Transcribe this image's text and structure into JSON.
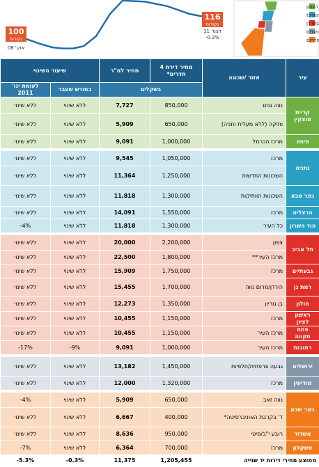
{
  "index_chart": {
    "values": [
      100,
      97,
      93,
      90,
      89,
      89,
      91,
      100,
      120,
      132,
      131,
      127,
      120,
      116
    ],
    "color": "#1e6fa8",
    "start": {
      "value": "100",
      "unit": "נקודות",
      "date": "אוק' 08"
    },
    "end": {
      "value": "116",
      "unit": "נקודות",
      "date": "דצמ' 11",
      "change": "-0.3%"
    },
    "label_color": "#e4572e"
  },
  "legend": [
    {
      "label": "ערי הצפון",
      "color": "#6fb043"
    },
    {
      "label": "ערי המרכז",
      "color": "#29a0c4"
    },
    {
      "label": "גוש דן",
      "color": "#e0302a"
    },
    {
      "label": "ערי אזור ירושלים",
      "color": "#8497a8"
    },
    {
      "label": "ערי הדרום",
      "color": "#f07a1c"
    }
  ],
  "table": {
    "headers": {
      "city": "עיר",
      "area": "אזור /שכונה",
      "price": "מחיר דירת 4 חדרים*",
      "sqm": "מחיר למ\"ר",
      "change": "שיעור השינוי",
      "currency": "בשקלים",
      "month": "בחודש שעבר",
      "jan": "לעומת ינו' 2011"
    },
    "groups": [
      {
        "color": "#6fb043",
        "light": "#d9eac8",
        "cities": [
          {
            "name": "קריית מוצקין",
            "rows": [
              [
                "נווה גנים",
                "850,000",
                "7,727",
                "ללא שינוי",
                "ללא שינוי"
              ],
              [
                "ותיקה (ללא מעלית וחניה)",
                "650,000",
                "5,909",
                "ללא שינוי",
                "ללא שינוי"
              ]
            ]
          },
          {
            "name": "חיפה",
            "rows": [
              [
                "מרכז הכרמל",
                "1,000,000",
                "9,091",
                "ללא שינוי",
                "ללא שינוי"
              ]
            ]
          }
        ]
      },
      {
        "color": "#29a0c4",
        "light": "#cde7f1",
        "cities": [
          {
            "name": "נתניה",
            "rows": [
              [
                "מרכז",
                "1,050,000",
                "9,545",
                "ללא שינוי",
                "ללא שינוי"
              ],
              [
                "השכונות החדשות",
                "1,250,000",
                "11,364",
                "ללא שינוי",
                "ללא שינוי"
              ]
            ]
          },
          {
            "name": "כפר סבא",
            "rows": [
              [
                "השכונות הוותיקות",
                "1,300,000",
                "11,818",
                "ללא שינוי",
                "ללא שינוי"
              ]
            ]
          },
          {
            "name": "הרצליה",
            "rows": [
              [
                "מרכז",
                "1,550,000",
                "14,091",
                "ללא שינוי",
                "ללא שינוי"
              ]
            ]
          },
          {
            "name": "הוד השרון",
            "rows": [
              [
                "כל העיר",
                "1,300,000",
                "11,818",
                "ללא שינוי",
                "-4%"
              ]
            ]
          }
        ]
      },
      {
        "color": "#e0302a",
        "light": "#f7d2c6",
        "cities": [
          {
            "name": "תל אביב",
            "rows": [
              [
                "צפון",
                "2,200,000",
                "20,000",
                "ללא שינוי",
                "ללא שינוי"
              ],
              [
                "מרכז העיר**",
                "1,800,000",
                "22,500",
                "ללא שינוי",
                "ללא שינוי"
              ]
            ]
          },
          {
            "name": "גבעתיים",
            "rows": [
              [
                "מרכז",
                "1,750,000",
                "15,909",
                "ללא שינוי",
                "ללא שינוי"
              ]
            ]
          },
          {
            "name": "רמת גן",
            "rows": [
              [
                "הירדן/מרום נווה",
                "1,700,000",
                "15,455",
                "ללא שינוי",
                "ללא שינוי"
              ]
            ]
          },
          {
            "name": "חולון",
            "rows": [
              [
                "בן גוריון",
                "1,350,000",
                "12,273",
                "ללא שינוי",
                "ללא שינוי"
              ]
            ]
          },
          {
            "name": "ראשון לציון",
            "rows": [
              [
                "מרכז",
                "1,150,000",
                "10,455",
                "ללא שינוי",
                "ללא שינוי"
              ]
            ]
          },
          {
            "name": "פתח תקווה",
            "rows": [
              [
                "מרכז העיר",
                "1,150,000",
                "10,455",
                "ללא שינוי",
                "ללא שינוי"
              ]
            ]
          },
          {
            "name": "רחובות",
            "rows": [
              [
                "מרכז העיר",
                "1,000,000",
                "9,091",
                "-9%",
                "-17%"
              ]
            ]
          }
        ]
      },
      {
        "color": "#8497a8",
        "light": "#dde3e9",
        "cities": [
          {
            "name": "ירושלים",
            "rows": [
              [
                "גבעה צרפתית/תלפיות",
                "1,450,000",
                "13,182",
                "ללא שינוי",
                "ללא שינוי"
              ]
            ]
          },
          {
            "name": "מודיעין",
            "rows": [
              [
                "מרכז",
                "1,320,000",
                "12,000",
                "ללא שינוי",
                "ללא שינוי"
              ]
            ]
          }
        ]
      },
      {
        "color": "#f07a1c",
        "light": "#fbdcc2",
        "cities": [
          {
            "name": "באר שבע",
            "rows": [
              [
                "נווה זאב",
                "650,000",
                "5,909",
                "ללא שינוי",
                "-4%"
              ],
              [
                "ד' בקרבת האוניברסיטה*",
                "400,000",
                "6,667",
                "ללא שינוי",
                "ללא שינוי"
              ]
            ]
          },
          {
            "name": "אשדוד",
            "rows": [
              [
                "רובע י\"ב/סיטי",
                "950,000",
                "8,636",
                "ללא שינוי",
                "ללא שינוי"
              ]
            ]
          },
          {
            "name": "אשקלון",
            "rows": [
              [
                "מרכז",
                "700,000",
                "6,364",
                "ללא שינוי",
                "-7%"
              ]
            ]
          }
        ]
      }
    ],
    "footer": [
      "ממוצע מחירי דירות יד שנייה",
      "1,205,455",
      "11,375",
      "-0.3%",
      "-5.3%"
    ]
  }
}
